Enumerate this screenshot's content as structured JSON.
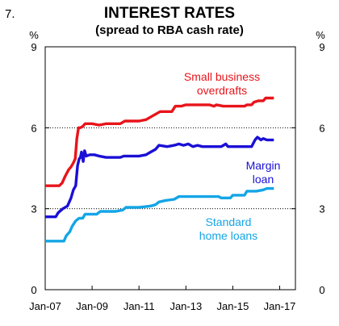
{
  "figure_number": "7.",
  "chart_data": {
    "type": "line",
    "title": "INTEREST RATES",
    "subtitle": "(spread to RBA cash rate)",
    "y_unit_left": "%",
    "y_unit_right": "%",
    "ylim": [
      0,
      9
    ],
    "y_ticks": [
      0,
      3,
      6,
      9
    ],
    "y_tick_labels": [
      "0",
      "3",
      "6",
      "9"
    ],
    "xlim": [
      2007.0,
      2017.67
    ],
    "x_ticks": [
      2007.0,
      2009.0,
      2011.0,
      2013.0,
      2015.0,
      2017.0
    ],
    "x_tick_labels": [
      "Jan-07",
      "Jan-09",
      "Jan-11",
      "Jan-13",
      "Jan-15",
      "Jan-17"
    ],
    "grid": "horizontal dotted at 3 and 6",
    "series": [
      {
        "name": "Small business overdrafts",
        "label_lines": [
          "Small business",
          "overdrafts"
        ],
        "color": "#e8141a",
        "points": [
          [
            2007.0,
            3.85
          ],
          [
            2007.6,
            3.85
          ],
          [
            2007.72,
            3.95
          ],
          [
            2007.85,
            4.2
          ],
          [
            2008.0,
            4.45
          ],
          [
            2008.1,
            4.55
          ],
          [
            2008.2,
            4.7
          ],
          [
            2008.28,
            4.85
          ],
          [
            2008.35,
            5.6
          ],
          [
            2008.42,
            6.0
          ],
          [
            2008.5,
            6.0
          ],
          [
            2008.6,
            6.05
          ],
          [
            2008.7,
            6.15
          ],
          [
            2009.0,
            6.15
          ],
          [
            2009.3,
            6.1
          ],
          [
            2009.6,
            6.15
          ],
          [
            2010.2,
            6.15
          ],
          [
            2010.4,
            6.25
          ],
          [
            2011.0,
            6.25
          ],
          [
            2011.3,
            6.3
          ],
          [
            2011.6,
            6.45
          ],
          [
            2011.9,
            6.6
          ],
          [
            2012.4,
            6.6
          ],
          [
            2012.55,
            6.8
          ],
          [
            2012.8,
            6.8
          ],
          [
            2013.0,
            6.85
          ],
          [
            2014.0,
            6.85
          ],
          [
            2014.2,
            6.8
          ],
          [
            2014.3,
            6.85
          ],
          [
            2014.6,
            6.8
          ],
          [
            2015.0,
            6.8
          ],
          [
            2015.5,
            6.8
          ],
          [
            2015.6,
            6.85
          ],
          [
            2015.8,
            6.85
          ],
          [
            2015.9,
            6.95
          ],
          [
            2016.1,
            7.0
          ],
          [
            2016.3,
            7.0
          ],
          [
            2016.4,
            7.1
          ],
          [
            2016.75,
            7.1
          ]
        ]
      },
      {
        "name": "Margin loan",
        "label_lines": [
          "Margin",
          "loan"
        ],
        "color": "#1a0fd6",
        "points": [
          [
            2007.0,
            2.7
          ],
          [
            2007.45,
            2.7
          ],
          [
            2007.55,
            2.85
          ],
          [
            2007.75,
            3.0
          ],
          [
            2007.95,
            3.1
          ],
          [
            2008.1,
            3.4
          ],
          [
            2008.2,
            3.7
          ],
          [
            2008.3,
            3.85
          ],
          [
            2008.38,
            4.6
          ],
          [
            2008.45,
            4.85
          ],
          [
            2008.5,
            4.9
          ],
          [
            2008.55,
            5.1
          ],
          [
            2008.62,
            4.75
          ],
          [
            2008.68,
            5.15
          ],
          [
            2008.75,
            4.95
          ],
          [
            2008.9,
            5.0
          ],
          [
            2009.1,
            5.0
          ],
          [
            2009.3,
            4.95
          ],
          [
            2009.6,
            4.9
          ],
          [
            2010.2,
            4.9
          ],
          [
            2010.35,
            4.95
          ],
          [
            2011.0,
            4.95
          ],
          [
            2011.3,
            5.0
          ],
          [
            2011.5,
            5.1
          ],
          [
            2011.7,
            5.2
          ],
          [
            2011.85,
            5.35
          ],
          [
            2012.2,
            5.3
          ],
          [
            2012.5,
            5.35
          ],
          [
            2012.7,
            5.4
          ],
          [
            2012.9,
            5.35
          ],
          [
            2013.1,
            5.4
          ],
          [
            2013.3,
            5.3
          ],
          [
            2013.5,
            5.35
          ],
          [
            2013.7,
            5.3
          ],
          [
            2014.5,
            5.3
          ],
          [
            2014.6,
            5.35
          ],
          [
            2014.7,
            5.4
          ],
          [
            2014.8,
            5.3
          ],
          [
            2015.5,
            5.3
          ],
          [
            2015.8,
            5.3
          ],
          [
            2015.95,
            5.55
          ],
          [
            2016.05,
            5.65
          ],
          [
            2016.2,
            5.55
          ],
          [
            2016.3,
            5.6
          ],
          [
            2016.45,
            5.55
          ],
          [
            2016.75,
            5.55
          ]
        ]
      },
      {
        "name": "Standard home loans",
        "label_lines": [
          "Standard",
          "home loans"
        ],
        "color": "#14a5e6",
        "points": [
          [
            2007.0,
            1.8
          ],
          [
            2007.8,
            1.8
          ],
          [
            2007.9,
            2.0
          ],
          [
            2008.05,
            2.15
          ],
          [
            2008.15,
            2.35
          ],
          [
            2008.3,
            2.55
          ],
          [
            2008.45,
            2.65
          ],
          [
            2008.6,
            2.65
          ],
          [
            2008.7,
            2.8
          ],
          [
            2009.0,
            2.8
          ],
          [
            2009.2,
            2.8
          ],
          [
            2009.35,
            2.9
          ],
          [
            2010.0,
            2.9
          ],
          [
            2010.3,
            2.95
          ],
          [
            2010.45,
            3.05
          ],
          [
            2011.0,
            3.05
          ],
          [
            2011.5,
            3.1
          ],
          [
            2011.7,
            3.15
          ],
          [
            2011.85,
            3.25
          ],
          [
            2012.1,
            3.3
          ],
          [
            2012.5,
            3.35
          ],
          [
            2012.7,
            3.45
          ],
          [
            2013.0,
            3.45
          ],
          [
            2014.0,
            3.45
          ],
          [
            2014.4,
            3.45
          ],
          [
            2014.5,
            3.4
          ],
          [
            2014.9,
            3.4
          ],
          [
            2015.0,
            3.5
          ],
          [
            2015.5,
            3.5
          ],
          [
            2015.6,
            3.65
          ],
          [
            2016.0,
            3.65
          ],
          [
            2016.3,
            3.7
          ],
          [
            2016.45,
            3.75
          ],
          [
            2016.75,
            3.75
          ]
        ]
      }
    ]
  }
}
